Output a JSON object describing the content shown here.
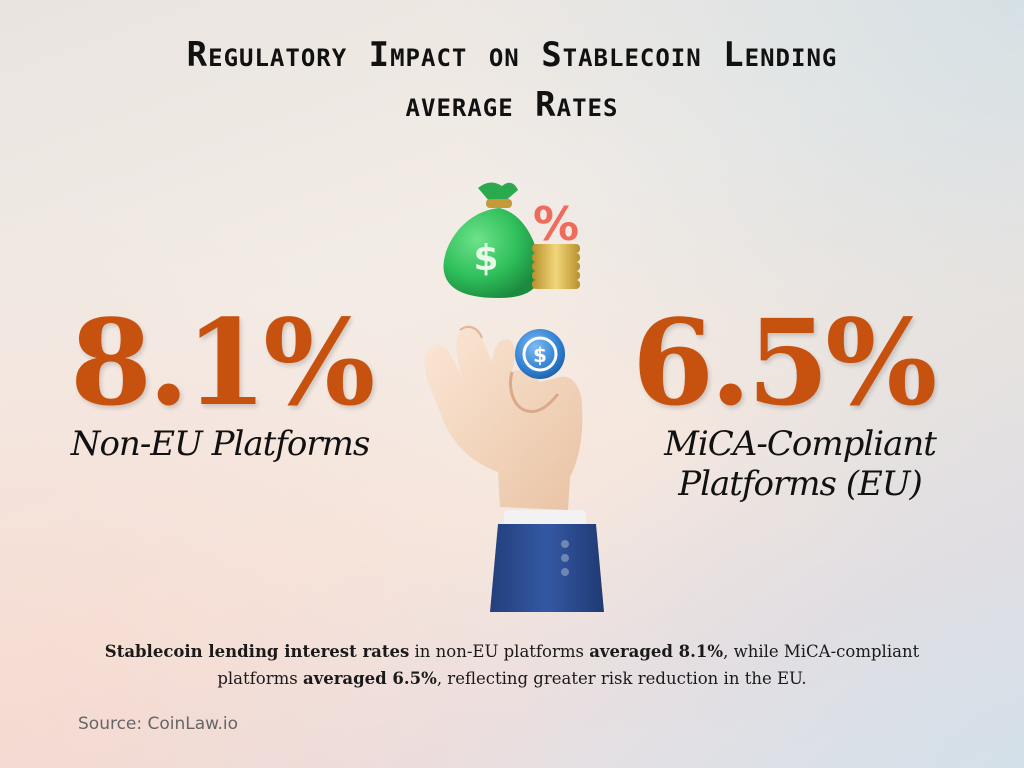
{
  "header": {
    "title_line1": "Regulatory Impact on Stablecoin Lending",
    "title_line2": "average Rates"
  },
  "stats": {
    "left": {
      "value": "8.1%",
      "label": "Non-EU Platforms"
    },
    "right": {
      "value": "6.5%",
      "label_line1": "MiCA-Compliant",
      "label_line2": "Platforms (EU)"
    }
  },
  "illustration": {
    "icons": [
      "money-bag-icon",
      "percent-icon",
      "coin-stack-icon",
      "usdc-coin-icon",
      "hand-icon"
    ],
    "money_bag_symbol": "$",
    "percent_symbol": "%",
    "coin_symbol": "$",
    "colors": {
      "bag": "#2fbf5b",
      "coin": "#2e7fd1",
      "coins_gold": "#d9b84a",
      "percent": "#ef6b5b",
      "sleeve": "#2b4e94"
    }
  },
  "summary": {
    "bold1": "Stablecoin lending interest rates",
    "text1": " in non-EU platforms ",
    "bold2": "averaged 8.1%",
    "text2": ", while MiCA-compliant platforms ",
    "bold3": "averaged 6.5%",
    "text3": ", reflecting greater risk reduction in the EU."
  },
  "source": "Source: CoinLaw.io",
  "theme": {
    "accent": "#c7510f",
    "text": "#111111"
  }
}
